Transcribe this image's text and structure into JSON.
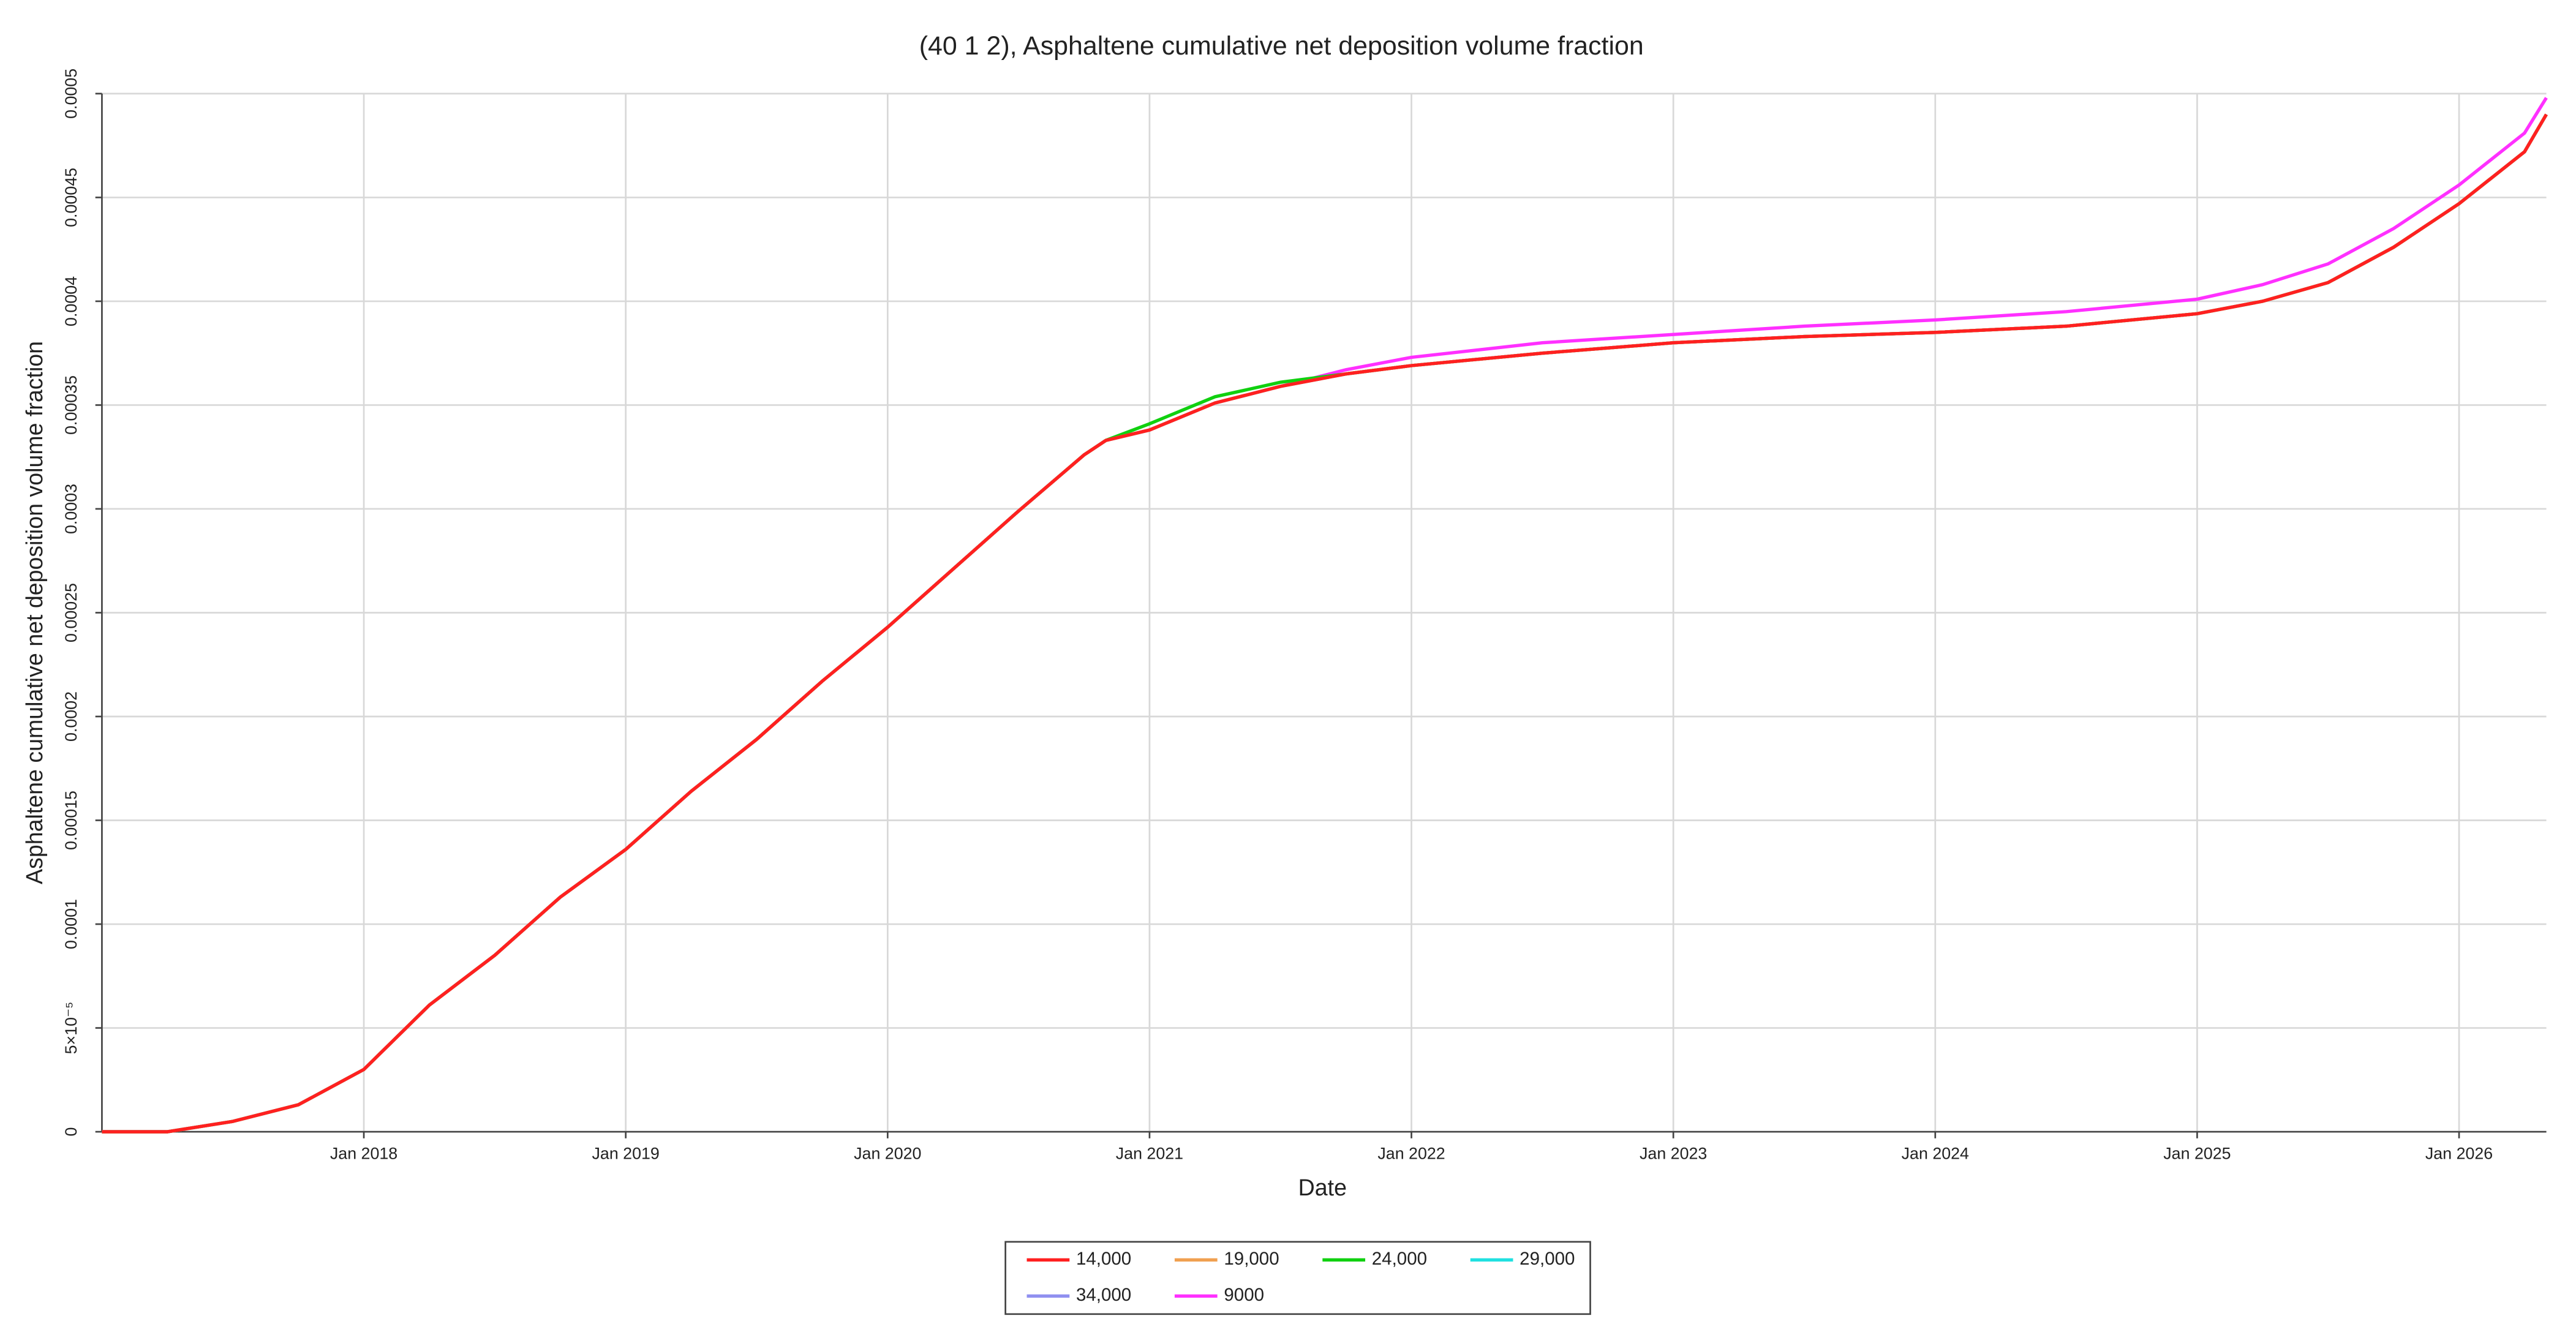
{
  "chart_data": {
    "type": "line",
    "title": "(40 1 2), Asphaltene cumulative net deposition volume fraction",
    "x_label": "Date",
    "y_label": "Asphaltene cumulative net deposition volume fraction",
    "x": [
      "2017-01",
      "2017-04",
      "2017-07",
      "2017-10",
      "2018-01",
      "2018-04",
      "2018-07",
      "2018-10",
      "2019-01",
      "2019-04",
      "2019-07",
      "2019-10",
      "2020-01",
      "2020-04",
      "2020-07",
      "2020-10",
      "2020-11",
      "2021-01",
      "2021-04",
      "2021-07",
      "2021-10",
      "2022-01",
      "2022-07",
      "2023-01",
      "2023-07",
      "2024-01",
      "2024-07",
      "2025-01",
      "2025-04",
      "2025-07",
      "2025-10",
      "2026-01",
      "2026-04",
      "2026-05"
    ],
    "xlim": [
      "2017-01",
      "2026-05"
    ],
    "xticks": [
      {
        "value": "2018-01",
        "label": "Jan 2018"
      },
      {
        "value": "2019-01",
        "label": "Jan 2019"
      },
      {
        "value": "2020-01",
        "label": "Jan 2020"
      },
      {
        "value": "2021-01",
        "label": "Jan 2021"
      },
      {
        "value": "2022-01",
        "label": "Jan 2022"
      },
      {
        "value": "2023-01",
        "label": "Jan 2023"
      },
      {
        "value": "2024-01",
        "label": "Jan 2024"
      },
      {
        "value": "2025-01",
        "label": "Jan 2025"
      },
      {
        "value": "2026-01",
        "label": "Jan 2026"
      }
    ],
    "ylim": [
      0,
      0.0005
    ],
    "yticks": [
      0,
      {
        "value": 5e-05,
        "label": "5×10⁻⁵"
      },
      0.0001,
      0.00015,
      0.0002,
      0.00025,
      0.0003,
      0.00035,
      0.0004,
      0.00045,
      0.0005
    ],
    "grid": true,
    "legend": "bottom",
    "series": [
      {
        "name": "14,000",
        "color": "#ff2020",
        "values": [
          0,
          0,
          5e-06,
          1.3e-05,
          3e-05,
          6.1e-05,
          8.5e-05,
          0.000113,
          0.000136,
          0.000164,
          0.000189,
          0.000217,
          0.000243,
          0.000271,
          0.000299,
          0.000326,
          0.000333,
          0.000338,
          0.000351,
          0.000359,
          0.000365,
          0.000369,
          0.000375,
          0.00038,
          0.000383,
          0.000385,
          0.000388,
          0.000394,
          0.0004,
          0.000409,
          0.000426,
          0.000447,
          0.000472,
          0.00049
        ]
      },
      {
        "name": "19,000",
        "color": "#f0a050",
        "values": [
          0,
          0,
          5e-06,
          1.3e-05,
          3e-05,
          6.1e-05,
          8.5e-05,
          0.000113,
          0.000136,
          0.000164,
          0.000189,
          0.000217,
          0.000243,
          0.000271,
          0.000299,
          0.000326,
          0.000333,
          0.000338,
          0.000351,
          0.000359,
          0.000365,
          0.000369,
          0.000375,
          0.00038,
          0.000383,
          0.000385,
          0.000388,
          0.000394,
          0.0004,
          0.000409,
          0.000426,
          0.000447,
          0.000472,
          0.00049
        ]
      },
      {
        "name": "24,000",
        "color": "#10d010",
        "values": [
          0,
          0,
          5e-06,
          1.3e-05,
          3e-05,
          6.1e-05,
          8.5e-05,
          0.000113,
          0.000136,
          0.000164,
          0.000189,
          0.000217,
          0.000243,
          0.000271,
          0.000299,
          0.000326,
          0.000333,
          0.000341,
          0.000354,
          0.000361,
          0.000365,
          0.000369,
          0.000375,
          0.00038,
          0.000383,
          0.000385,
          0.000388,
          0.000394,
          0.0004,
          0.000409,
          0.000426,
          0.000447,
          0.000472,
          0.00049
        ]
      },
      {
        "name": "29,000",
        "color": "#20e0e0",
        "values": [
          0,
          0,
          5e-06,
          1.3e-05,
          3e-05,
          6.1e-05,
          8.5e-05,
          0.000113,
          0.000136,
          0.000164,
          0.000189,
          0.000217,
          0.000243,
          0.000271,
          0.000299,
          0.000326,
          0.000333,
          0.000338,
          0.000351,
          0.000359,
          0.000365,
          0.000369,
          0.000375,
          0.00038,
          0.000383,
          0.000385,
          0.000388,
          0.000394,
          0.0004,
          0.000409,
          0.000426,
          0.000447,
          0.000472,
          0.00049
        ]
      },
      {
        "name": "34,000",
        "color": "#9090f0",
        "values": [
          0,
          0,
          5e-06,
          1.3e-05,
          3e-05,
          6.1e-05,
          8.5e-05,
          0.000113,
          0.000136,
          0.000164,
          0.000189,
          0.000217,
          0.000243,
          0.000271,
          0.000299,
          0.000326,
          0.000333,
          0.000338,
          0.000351,
          0.000359,
          0.000365,
          0.000369,
          0.000375,
          0.00038,
          0.000383,
          0.000385,
          0.000388,
          0.000394,
          0.0004,
          0.000409,
          0.000426,
          0.000447,
          0.000472,
          0.00049
        ]
      },
      {
        "name": "9000",
        "color": "#ff30ff",
        "values": [
          0,
          0,
          5e-06,
          1.3e-05,
          3e-05,
          6.1e-05,
          8.5e-05,
          0.000113,
          0.000136,
          0.000164,
          0.000189,
          0.000217,
          0.000243,
          0.000271,
          0.000299,
          0.000326,
          0.000333,
          0.000338,
          0.000351,
          0.000359,
          0.000367,
          0.000373,
          0.00038,
          0.000384,
          0.000388,
          0.000391,
          0.000395,
          0.000401,
          0.000408,
          0.000418,
          0.000435,
          0.000456,
          0.000481,
          0.000498
        ]
      }
    ]
  }
}
